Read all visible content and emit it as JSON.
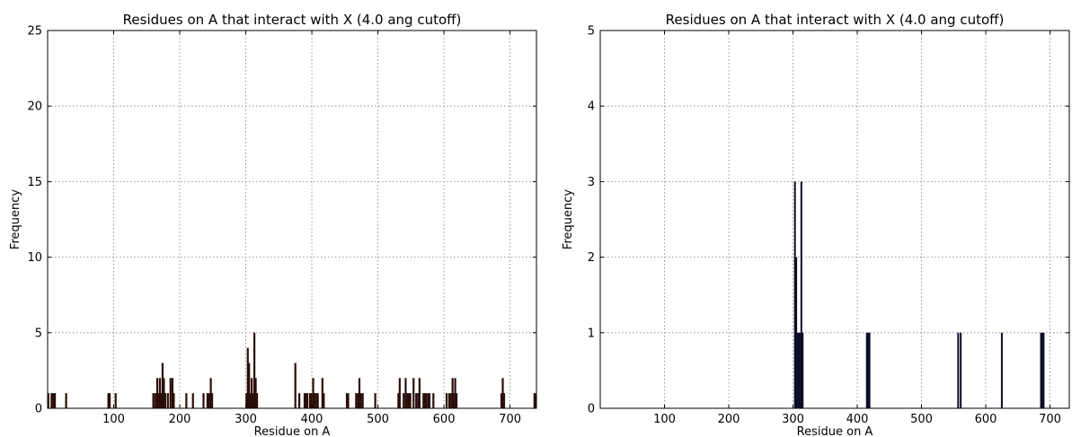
{
  "chart_data": [
    {
      "type": "bar",
      "title": "Residues on A that interact with X (4.0 ang cutoff)",
      "xlabel": "Residue on A",
      "ylabel": "Frequency",
      "xlim": [
        0,
        740
      ],
      "ylim": [
        0,
        25
      ],
      "xticks": [
        100,
        200,
        300,
        400,
        500,
        600,
        700
      ],
      "yticks": [
        0,
        5,
        10,
        15,
        20,
        25
      ],
      "grid": true,
      "bar_color": "#2b0e08",
      "bars": [
        {
          "x": 1,
          "y": 1
        },
        {
          "x": 6,
          "y": 1
        },
        {
          "x": 9,
          "y": 1
        },
        {
          "x": 11,
          "y": 1
        },
        {
          "x": 28,
          "y": 1
        },
        {
          "x": 92,
          "y": 1
        },
        {
          "x": 94,
          "y": 1
        },
        {
          "x": 103,
          "y": 1
        },
        {
          "x": 160,
          "y": 1
        },
        {
          "x": 163,
          "y": 1
        },
        {
          "x": 166,
          "y": 2
        },
        {
          "x": 168,
          "y": 1
        },
        {
          "x": 170,
          "y": 2
        },
        {
          "x": 172,
          "y": 1
        },
        {
          "x": 174,
          "y": 3
        },
        {
          "x": 176,
          "y": 2
        },
        {
          "x": 178,
          "y": 1
        },
        {
          "x": 182,
          "y": 1
        },
        {
          "x": 186,
          "y": 2
        },
        {
          "x": 189,
          "y": 2
        },
        {
          "x": 191,
          "y": 1
        },
        {
          "x": 210,
          "y": 1
        },
        {
          "x": 220,
          "y": 1
        },
        {
          "x": 236,
          "y": 1
        },
        {
          "x": 242,
          "y": 1
        },
        {
          "x": 245,
          "y": 1
        },
        {
          "x": 247,
          "y": 2
        },
        {
          "x": 249,
          "y": 1
        },
        {
          "x": 301,
          "y": 1
        },
        {
          "x": 303,
          "y": 4
        },
        {
          "x": 305,
          "y": 3
        },
        {
          "x": 307,
          "y": 1
        },
        {
          "x": 309,
          "y": 2
        },
        {
          "x": 311,
          "y": 1
        },
        {
          "x": 313,
          "y": 5
        },
        {
          "x": 315,
          "y": 2
        },
        {
          "x": 317,
          "y": 1
        },
        {
          "x": 375,
          "y": 3
        },
        {
          "x": 381,
          "y": 1
        },
        {
          "x": 389,
          "y": 1
        },
        {
          "x": 391,
          "y": 1
        },
        {
          "x": 393,
          "y": 1
        },
        {
          "x": 397,
          "y": 1
        },
        {
          "x": 399,
          "y": 1
        },
        {
          "x": 402,
          "y": 2
        },
        {
          "x": 404,
          "y": 1
        },
        {
          "x": 407,
          "y": 1
        },
        {
          "x": 409,
          "y": 1
        },
        {
          "x": 416,
          "y": 2
        },
        {
          "x": 418,
          "y": 1
        },
        {
          "x": 453,
          "y": 1
        },
        {
          "x": 455,
          "y": 1
        },
        {
          "x": 467,
          "y": 1
        },
        {
          "x": 470,
          "y": 1
        },
        {
          "x": 472,
          "y": 2
        },
        {
          "x": 474,
          "y": 1
        },
        {
          "x": 477,
          "y": 1
        },
        {
          "x": 496,
          "y": 1
        },
        {
          "x": 531,
          "y": 1
        },
        {
          "x": 533,
          "y": 2
        },
        {
          "x": 539,
          "y": 1
        },
        {
          "x": 542,
          "y": 2
        },
        {
          "x": 545,
          "y": 1
        },
        {
          "x": 547,
          "y": 1
        },
        {
          "x": 549,
          "y": 1
        },
        {
          "x": 554,
          "y": 2
        },
        {
          "x": 558,
          "y": 1
        },
        {
          "x": 561,
          "y": 1
        },
        {
          "x": 563,
          "y": 2
        },
        {
          "x": 569,
          "y": 1
        },
        {
          "x": 571,
          "y": 1
        },
        {
          "x": 573,
          "y": 1
        },
        {
          "x": 576,
          "y": 1
        },
        {
          "x": 578,
          "y": 1
        },
        {
          "x": 584,
          "y": 1
        },
        {
          "x": 604,
          "y": 1
        },
        {
          "x": 608,
          "y": 1
        },
        {
          "x": 611,
          "y": 1
        },
        {
          "x": 613,
          "y": 2
        },
        {
          "x": 615,
          "y": 1
        },
        {
          "x": 617,
          "y": 2
        },
        {
          "x": 619,
          "y": 1
        },
        {
          "x": 687,
          "y": 1
        },
        {
          "x": 689,
          "y": 2
        },
        {
          "x": 691,
          "y": 1
        },
        {
          "x": 737,
          "y": 1
        },
        {
          "x": 739,
          "y": 1
        }
      ]
    },
    {
      "type": "bar",
      "title": "Residues on A that interact with X (4.0 ang cutoff)",
      "xlabel": "Residue on A",
      "ylabel": "Frequency",
      "xlim": [
        0,
        730
      ],
      "ylim": [
        0,
        5
      ],
      "xticks": [
        100,
        200,
        300,
        400,
        500,
        600,
        700
      ],
      "yticks": [
        0,
        1,
        2,
        3,
        4,
        5
      ],
      "grid": true,
      "bar_color": "#0d0d26",
      "bars": [
        {
          "x": 303,
          "y": 3
        },
        {
          "x": 305,
          "y": 2
        },
        {
          "x": 307,
          "y": 1
        },
        {
          "x": 309,
          "y": 1
        },
        {
          "x": 311,
          "y": 1
        },
        {
          "x": 313,
          "y": 3
        },
        {
          "x": 315,
          "y": 1
        },
        {
          "x": 415,
          "y": 1
        },
        {
          "x": 417,
          "y": 1
        },
        {
          "x": 419,
          "y": 1
        },
        {
          "x": 557,
          "y": 1
        },
        {
          "x": 561,
          "y": 1
        },
        {
          "x": 625,
          "y": 1
        },
        {
          "x": 686,
          "y": 1
        },
        {
          "x": 688,
          "y": 1
        },
        {
          "x": 690,
          "y": 1
        }
      ]
    }
  ]
}
